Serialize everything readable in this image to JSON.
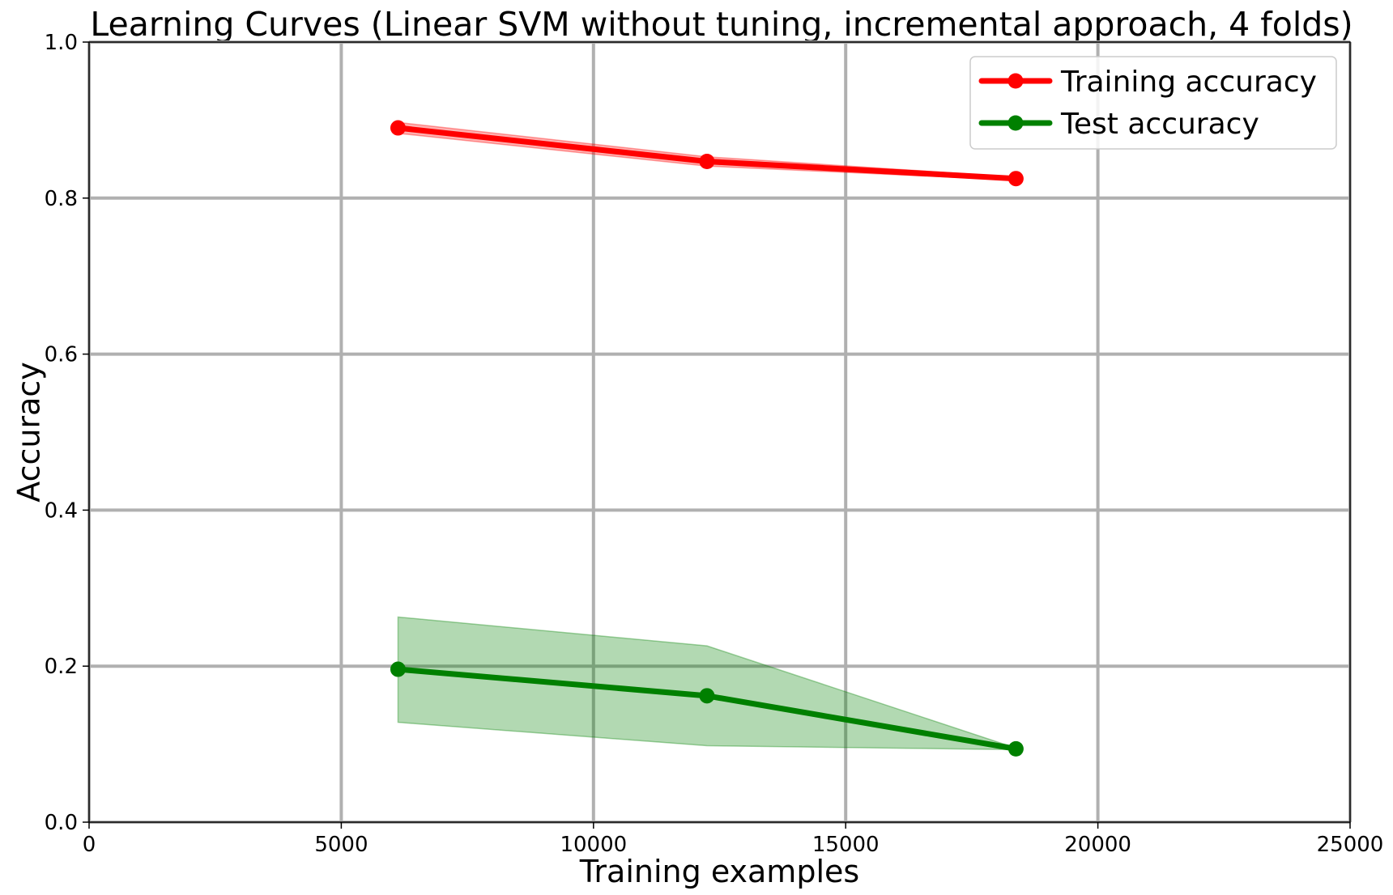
{
  "chart_data": {
    "type": "line",
    "title": "Learning Curves (Linear SVM without tuning, incremental approach, 4 folds)",
    "xlabel": "Training examples",
    "ylabel": "Accuracy",
    "xlim": [
      0,
      25000
    ],
    "ylim": [
      0.0,
      1.0
    ],
    "xticks": [
      0,
      5000,
      10000,
      15000,
      20000,
      25000
    ],
    "xtick_labels": [
      "0",
      "5000",
      "10000",
      "15000",
      "20000",
      "25000"
    ],
    "yticks": [
      0.0,
      0.2,
      0.4,
      0.6,
      0.8,
      1.0
    ],
    "ytick_labels": [
      "0.0",
      "0.2",
      "0.4",
      "0.6",
      "0.8",
      "1.0"
    ],
    "grid": true,
    "legend_position": "top-right",
    "x": [
      6125,
      12250,
      18375
    ],
    "series": [
      {
        "name": "Training accuracy",
        "color": "#ff0000",
        "values": [
          0.89,
          0.847,
          0.825
        ],
        "band_upper": [
          0.897,
          0.853,
          0.827
        ],
        "band_lower": [
          0.883,
          0.841,
          0.823
        ]
      },
      {
        "name": "Test accuracy",
        "color": "#008000",
        "values": [
          0.196,
          0.162,
          0.094
        ],
        "band_upper": [
          0.263,
          0.226,
          0.095
        ],
        "band_lower": [
          0.128,
          0.098,
          0.093
        ]
      }
    ]
  }
}
